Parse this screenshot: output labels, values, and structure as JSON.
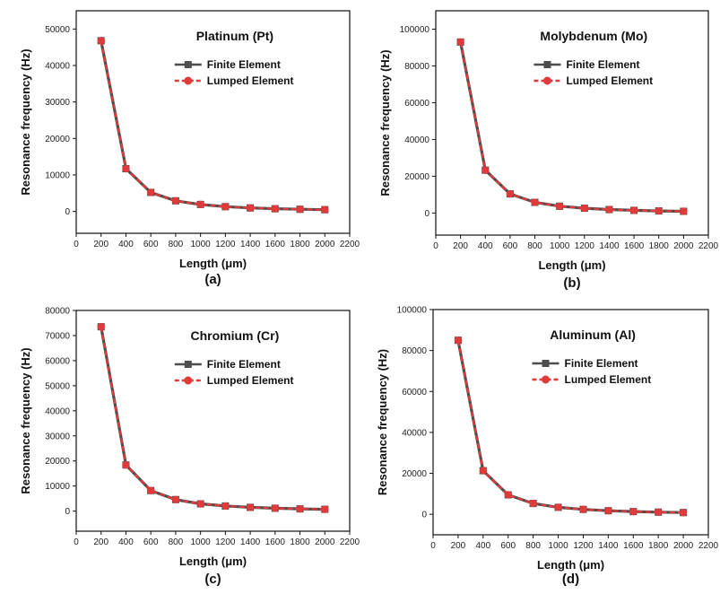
{
  "colors": {
    "finite": "#4d4d4d",
    "lumped": "#e03a3a",
    "axis": "#111111"
  },
  "chart_data": [
    {
      "type": "line",
      "panel_label": "(a)",
      "title": "Platinum (Pt)",
      "xlabel": "Length (μm)",
      "ylabel": "Resonance frequency (Hz)",
      "xlim": [
        0,
        2200
      ],
      "ylim": [
        -6000,
        55000
      ],
      "xticks": [
        0,
        200,
        400,
        600,
        800,
        1000,
        1200,
        1400,
        1600,
        1800,
        2000,
        2200
      ],
      "yticks": [
        0,
        10000,
        20000,
        30000,
        40000,
        50000
      ],
      "legend_position": "upper-right",
      "x": [
        200,
        400,
        600,
        800,
        1000,
        1200,
        1400,
        1600,
        1800,
        2000
      ],
      "series": [
        {
          "name": "Finite Element",
          "color": "#4d4d4d",
          "marker": "square",
          "values": [
            46800,
            11700,
            5200,
            2900,
            1900,
            1300,
            950,
            730,
            580,
            470
          ]
        },
        {
          "name": "Lumped Element",
          "color": "#e03a3a",
          "marker": "circle",
          "values": [
            46800,
            11700,
            5200,
            2900,
            1900,
            1300,
            950,
            730,
            580,
            470
          ]
        }
      ]
    },
    {
      "type": "line",
      "panel_label": "(b)",
      "title": "Molybdenum (Mo)",
      "xlabel": "Length (μm)",
      "ylabel": "Resonance frequency (Hz)",
      "xlim": [
        0,
        2200
      ],
      "ylim": [
        -12000,
        110000
      ],
      "xticks": [
        0,
        200,
        400,
        600,
        800,
        1000,
        1200,
        1400,
        1600,
        1800,
        2000,
        2200
      ],
      "yticks": [
        0,
        20000,
        40000,
        60000,
        80000,
        100000
      ],
      "legend_position": "upper-right",
      "x": [
        200,
        400,
        600,
        800,
        1000,
        1200,
        1400,
        1600,
        1800,
        2000
      ],
      "series": [
        {
          "name": "Finite Element",
          "color": "#4d4d4d",
          "marker": "square",
          "values": [
            93000,
            23300,
            10400,
            5800,
            3700,
            2600,
            1900,
            1450,
            1150,
            930
          ]
        },
        {
          "name": "Lumped Element",
          "color": "#e03a3a",
          "marker": "circle",
          "values": [
            93000,
            23300,
            10400,
            5800,
            3700,
            2600,
            1900,
            1450,
            1150,
            930
          ]
        }
      ]
    },
    {
      "type": "line",
      "panel_label": "(c)",
      "title": "Chromium (Cr)",
      "xlabel": "Length (μm)",
      "ylabel": "Resonance frequency (Hz)",
      "xlim": [
        0,
        2200
      ],
      "ylim": [
        -8000,
        80000
      ],
      "xticks": [
        0,
        200,
        400,
        600,
        800,
        1000,
        1200,
        1400,
        1600,
        1800,
        2000,
        2200
      ],
      "yticks": [
        0,
        10000,
        20000,
        30000,
        40000,
        50000,
        60000,
        70000,
        80000
      ],
      "legend_position": "upper-right",
      "x": [
        200,
        400,
        600,
        800,
        1000,
        1200,
        1400,
        1600,
        1800,
        2000
      ],
      "series": [
        {
          "name": "Finite Element",
          "color": "#4d4d4d",
          "marker": "square",
          "values": [
            73500,
            18400,
            8200,
            4600,
            2900,
            2050,
            1500,
            1150,
            900,
            730
          ]
        },
        {
          "name": "Lumped Element",
          "color": "#e03a3a",
          "marker": "circle",
          "values": [
            73500,
            18400,
            8200,
            4600,
            2900,
            2050,
            1500,
            1150,
            900,
            730
          ]
        }
      ]
    },
    {
      "type": "line",
      "panel_label": "(d)",
      "title": "Aluminum (Al)",
      "xlabel": "Length (μm)",
      "ylabel": "Resonance frequency (Hz)",
      "xlim": [
        0,
        2200
      ],
      "ylim": [
        -10000,
        100000
      ],
      "xticks": [
        0,
        200,
        400,
        600,
        800,
        1000,
        1200,
        1400,
        1600,
        1800,
        2000,
        2200
      ],
      "yticks": [
        0,
        20000,
        40000,
        60000,
        80000,
        100000
      ],
      "legend_position": "upper-right",
      "x": [
        200,
        400,
        600,
        800,
        1000,
        1200,
        1400,
        1600,
        1800,
        2000
      ],
      "series": [
        {
          "name": "Finite Element",
          "color": "#4d4d4d",
          "marker": "square",
          "values": [
            85000,
            21300,
            9500,
            5300,
            3400,
            2400,
            1750,
            1330,
            1050,
            850
          ]
        },
        {
          "name": "Lumped Element",
          "color": "#e03a3a",
          "marker": "circle",
          "values": [
            85000,
            21300,
            9500,
            5300,
            3400,
            2400,
            1750,
            1330,
            1050,
            850
          ]
        }
      ]
    }
  ]
}
